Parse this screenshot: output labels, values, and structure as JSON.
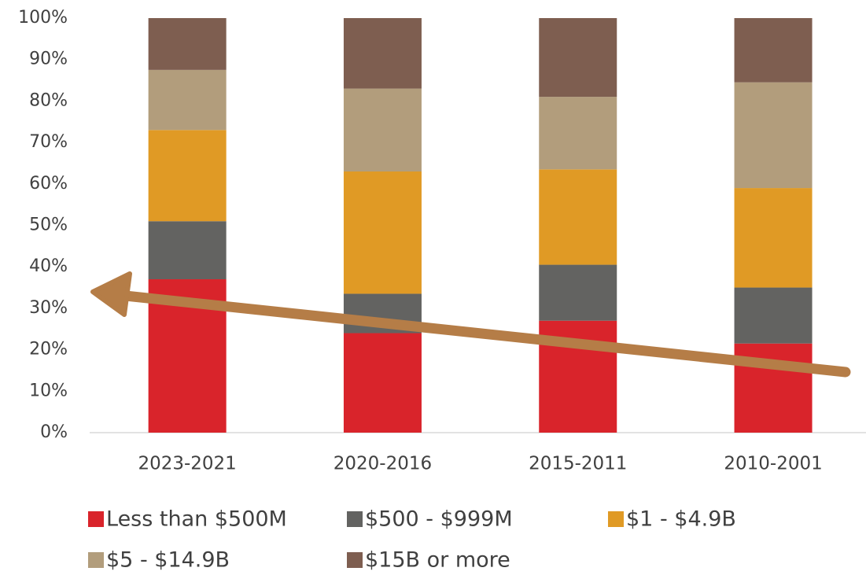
{
  "chart_data": {
    "type": "stacked_bar",
    "categories": [
      "2023-2021",
      "2020-2016",
      "2015-2011",
      "2010-2001"
    ],
    "series": [
      {
        "name": "Less than $500M",
        "color": "#d9242b",
        "values": [
          37,
          24,
          27,
          21.5
        ]
      },
      {
        "name": "$500 - $999M",
        "color": "#636361",
        "values": [
          14,
          9.5,
          13.5,
          13.5
        ]
      },
      {
        "name": "$1 - $4.9B",
        "color": "#e09a25",
        "values": [
          22,
          29.5,
          23,
          24
        ]
      },
      {
        "name": "$5 - $14.9B",
        "color": "#b29d7c",
        "values": [
          14.5,
          20,
          17.5,
          25.5
        ]
      },
      {
        "name": "$15B or more",
        "color": "#7e5e50",
        "values": [
          12.5,
          17,
          19,
          15.5
        ]
      }
    ],
    "ylim": [
      0,
      100
    ],
    "yticks": [
      {
        "value": 0,
        "label": "0%"
      },
      {
        "value": 10,
        "label": "10%"
      },
      {
        "value": 20,
        "label": "20%"
      },
      {
        "value": 30,
        "label": "30%"
      },
      {
        "value": 40,
        "label": "40%"
      },
      {
        "value": 50,
        "label": "50%"
      },
      {
        "value": 60,
        "label": "60%"
      },
      {
        "value": 70,
        "label": "70%"
      },
      {
        "value": 80,
        "label": "80%"
      },
      {
        "value": 90,
        "label": "90%"
      },
      {
        "value": 100,
        "label": "100%"
      }
    ],
    "grid": false,
    "legend": "bottom"
  }
}
